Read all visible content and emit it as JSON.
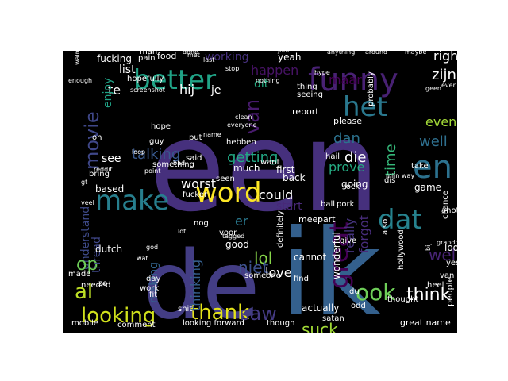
{
  "wordcloud": {
    "background": "#000000",
    "colormap": "viridis",
    "words": [
      {
        "text": "een",
        "color": "#46307d"
      },
      {
        "text": "ik",
        "color": "#34608d"
      },
      {
        "text": "de",
        "color": "#433d84"
      },
      {
        "text": "funny",
        "color": "#482173"
      },
      {
        "text": "better",
        "color": "#20a386"
      },
      {
        "text": "het",
        "color": "#2a788e"
      },
      {
        "text": "en",
        "color": "#2c718e"
      },
      {
        "text": "word",
        "color": "#fde725"
      },
      {
        "text": "make",
        "color": "#277f8e"
      },
      {
        "text": "dat",
        "color": "#26828e"
      },
      {
        "text": "movie",
        "color": "#3f4788"
      },
      {
        "text": "van",
        "color": "#481b6d"
      },
      {
        "text": "great",
        "color": "#440154"
      },
      {
        "text": "looking",
        "color": "#d0e11c"
      },
      {
        "text": "thank",
        "color": "#e5e419"
      },
      {
        "text": "saw",
        "color": "#443a83"
      },
      {
        "text": "ook",
        "color": "#6ece58"
      },
      {
        "text": "think",
        "color": "#ffffff"
      },
      {
        "text": "al",
        "color": "#bddf26"
      },
      {
        "text": "suck",
        "color": "#a2da37"
      },
      {
        "text": "lol",
        "color": "#86d549"
      },
      {
        "text": "niet",
        "color": "#3c508b"
      },
      {
        "text": "wel",
        "color": "#482475"
      },
      {
        "text": "well",
        "color": "#2e6f8e"
      },
      {
        "text": "really",
        "color": "#45337d"
      },
      {
        "text": "forgot",
        "color": "#472c7a"
      },
      {
        "text": "getting",
        "color": "#22a884"
      },
      {
        "text": "talking",
        "color": "#38588c"
      },
      {
        "text": "time",
        "color": "#35b779"
      },
      {
        "text": "even",
        "color": "#a2da37"
      },
      {
        "text": "die",
        "color": "#ffffff"
      },
      {
        "text": "dan",
        "color": "#2c728e"
      },
      {
        "text": "prove",
        "color": "#25ab82"
      },
      {
        "text": "zijn",
        "color": "#ffffff"
      },
      {
        "text": "right",
        "color": "#ffffff"
      },
      {
        "text": "maar",
        "color": "#440154"
      },
      {
        "text": "happen",
        "color": "#471365"
      },
      {
        "text": "dit",
        "color": "#25ab82"
      },
      {
        "text": "hij",
        "color": "#ffffff"
      },
      {
        "text": "working",
        "color": "#46307d"
      },
      {
        "text": "fucking",
        "color": "#ffffff"
      },
      {
        "text": "list",
        "color": "#ffffff"
      },
      {
        "text": "te",
        "color": "#ffffff"
      },
      {
        "text": "enjoy",
        "color": "#20a386"
      },
      {
        "text": "understand",
        "color": "#3e4a89"
      },
      {
        "text": "op",
        "color": "#6ece58"
      },
      {
        "text": "thread",
        "color": "#3f4788"
      },
      {
        "text": "thinking",
        "color": "#355f8d"
      },
      {
        "text": "love",
        "color": "#ffffff"
      },
      {
        "text": "could",
        "color": "#ffffff"
      },
      {
        "text": "start",
        "color": "#482878"
      },
      {
        "text": "worst",
        "color": "#ffffff"
      },
      {
        "text": "making",
        "color": "#32648e"
      },
      {
        "text": "er",
        "color": "#2a788e"
      },
      {
        "text": "see",
        "color": "#ffffff"
      },
      {
        "text": "yeah",
        "color": "#ffffff"
      },
      {
        "text": "je",
        "color": "#ffffff"
      },
      {
        "text": "actually",
        "color": "#ffffff"
      },
      {
        "text": "look",
        "color": "#ffffff"
      },
      {
        "text": "people",
        "color": "#ffffff"
      },
      {
        "text": "game",
        "color": "#ffffff"
      },
      {
        "text": "wonderful",
        "color": "#ffffff"
      },
      {
        "text": "definitely",
        "color": "#ffffff"
      },
      {
        "text": "cannot",
        "color": "#ffffff"
      },
      {
        "text": "good",
        "color": "#ffffff"
      },
      {
        "text": "based",
        "color": "#ffffff"
      },
      {
        "text": "dutch",
        "color": "#ffffff"
      },
      {
        "text": "hebben",
        "color": "#ffffff"
      },
      {
        "text": "much",
        "color": "#ffffff"
      },
      {
        "text": "first",
        "color": "#ffffff"
      },
      {
        "text": "back",
        "color": "#ffffff"
      },
      {
        "text": "going",
        "color": "#ffffff"
      },
      {
        "text": "guy",
        "color": "#ffffff"
      },
      {
        "text": "hope",
        "color": "#ffffff"
      },
      {
        "text": "please",
        "color": "#ffffff"
      },
      {
        "text": "probably",
        "color": "#ffffff"
      },
      {
        "text": "thing",
        "color": "#ffffff"
      },
      {
        "text": "seeing",
        "color": "#ffffff"
      },
      {
        "text": "report",
        "color": "#ffffff"
      },
      {
        "text": "hopefully",
        "color": "#ffffff"
      },
      {
        "text": "food",
        "color": "#ffffff"
      },
      {
        "text": "pain",
        "color": "#ffffff"
      },
      {
        "text": "man",
        "color": "#ffffff"
      },
      {
        "text": "oh",
        "color": "#ffffff"
      },
      {
        "text": "bring",
        "color": "#ffffff"
      },
      {
        "text": "screenshot",
        "color": "#ffffff"
      },
      {
        "text": "something",
        "color": "#ffffff"
      },
      {
        "text": "put",
        "color": "#ffffff"
      },
      {
        "text": "want",
        "color": "#ffffff"
      },
      {
        "text": "everyone",
        "color": "#ffffff"
      },
      {
        "text": "clean",
        "color": "#ffffff"
      },
      {
        "text": "said",
        "color": "#ffffff"
      },
      {
        "text": "seen",
        "color": "#ffffff"
      },
      {
        "text": "fucker",
        "color": "#ffffff"
      },
      {
        "text": "nog",
        "color": "#ffffff"
      },
      {
        "text": "voor",
        "color": "#ffffff"
      },
      {
        "text": "meer",
        "color": "#ffffff"
      },
      {
        "text": "part",
        "color": "#ffffff"
      },
      {
        "text": "ball",
        "color": "#ffffff"
      },
      {
        "text": "rock",
        "color": "#ffffff"
      },
      {
        "text": "pork",
        "color": "#ffffff"
      },
      {
        "text": "hail",
        "color": "#ffffff"
      },
      {
        "text": "dis",
        "color": "#ffffff"
      },
      {
        "text": "take",
        "color": "#ffffff"
      },
      {
        "text": "chance",
        "color": "#ffffff"
      },
      {
        "text": "another",
        "color": "#ffffff"
      },
      {
        "text": "also",
        "color": "#ffffff"
      },
      {
        "text": "hollywood",
        "color": "#ffffff"
      },
      {
        "text": "yes",
        "color": "#ffffff"
      },
      {
        "text": "van de",
        "color": "#ffffff"
      },
      {
        "text": "heel",
        "color": "#ffffff"
      },
      {
        "text": "thought",
        "color": "#ffffff"
      },
      {
        "text": "great name",
        "color": "#ffffff"
      },
      {
        "text": "satan",
        "color": "#ffffff"
      },
      {
        "text": "du",
        "color": "#ffffff"
      },
      {
        "text": "odd",
        "color": "#ffffff"
      },
      {
        "text": "give",
        "color": "#ffffff"
      },
      {
        "text": "find",
        "color": "#ffffff"
      },
      {
        "text": "though",
        "color": "#ffffff"
      },
      {
        "text": "looking forward",
        "color": "#ffffff"
      },
      {
        "text": "comment",
        "color": "#ffffff"
      },
      {
        "text": "mobile",
        "color": "#ffffff"
      },
      {
        "text": "made",
        "color": "#ffffff"
      },
      {
        "text": "shit",
        "color": "#ffffff"
      },
      {
        "text": "day",
        "color": "#ffffff"
      },
      {
        "text": "fit",
        "color": "#ffffff"
      },
      {
        "text": "work",
        "color": "#ffffff"
      },
      {
        "text": "someone",
        "color": "#ffffff"
      },
      {
        "text": "tagged",
        "color": "#ffffff"
      },
      {
        "text": "needed",
        "color": "#ffffff"
      },
      {
        "text": "zo",
        "color": "#ffffff"
      },
      {
        "text": "lot",
        "color": "#ffffff"
      },
      {
        "text": "veel",
        "color": "#ffffff"
      },
      {
        "text": "point",
        "color": "#ffffff"
      },
      {
        "text": "bad",
        "color": "#ffffff"
      },
      {
        "text": "loop",
        "color": "#ffffff"
      },
      {
        "text": "reddit",
        "color": "#ffffff"
      },
      {
        "text": "name",
        "color": "#ffffff"
      },
      {
        "text": "nothing",
        "color": "#ffffff"
      },
      {
        "text": "stop",
        "color": "#ffffff"
      },
      {
        "text": "last",
        "color": "#ffffff"
      },
      {
        "text": "jaar",
        "color": "#ffffff"
      },
      {
        "text": "anything",
        "color": "#ffffff"
      },
      {
        "text": "around",
        "color": "#ffffff"
      },
      {
        "text": "maybe",
        "color": "#ffffff"
      },
      {
        "text": "ever",
        "color": "#ffffff"
      },
      {
        "text": "geen",
        "color": "#ffffff"
      },
      {
        "text": "done",
        "color": "#ffffff"
      },
      {
        "text": "hype",
        "color": "#ffffff"
      },
      {
        "text": "mijn",
        "color": "#ffffff"
      },
      {
        "text": "way",
        "color": "#ffffff"
      },
      {
        "text": "grandpa",
        "color": "#ffffff"
      },
      {
        "text": "bij",
        "color": "#ffffff"
      },
      {
        "text": "met",
        "color": "#ffffff"
      },
      {
        "text": "enough",
        "color": "#ffffff"
      },
      {
        "text": "walnut",
        "color": "#ffffff"
      },
      {
        "text": "wat",
        "color": "#ffffff"
      },
      {
        "text": "god",
        "color": "#ffffff"
      },
      {
        "text": "gt",
        "color": "#ffffff"
      }
    ]
  }
}
